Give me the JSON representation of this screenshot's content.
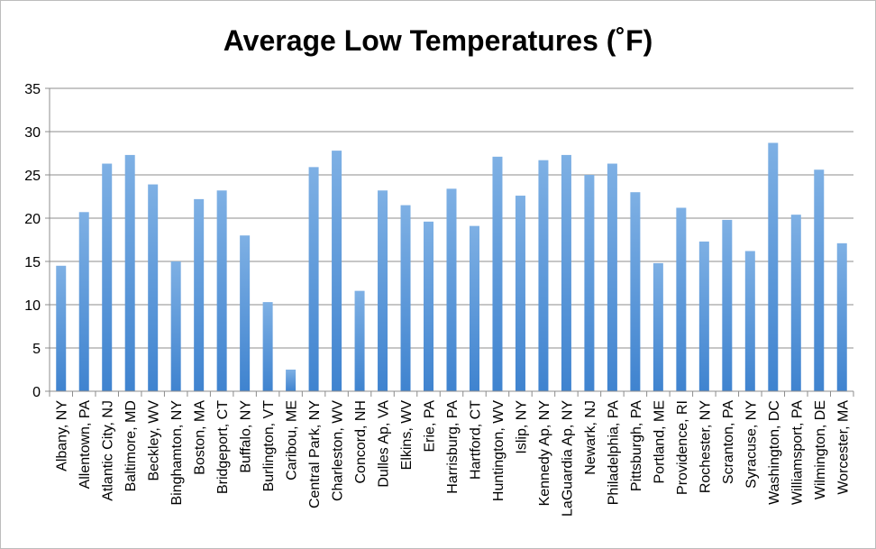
{
  "chart_data": {
    "type": "bar",
    "title": "Average Low Temperatures (˚F)",
    "xlabel": "",
    "ylabel": "",
    "ylim": [
      0,
      35
    ],
    "yticks": [
      0,
      5,
      10,
      15,
      20,
      25,
      30,
      35
    ],
    "grid": true,
    "legend": "none",
    "bar_color": "#5b9bd5",
    "categories": [
      "Albany, NY",
      "Allentown, PA",
      "Atlantic City, NJ",
      "Baltimore, MD",
      "Beckley, WV",
      "Binghamton, NY",
      "Boston, MA",
      "Bridgeport, CT",
      "Buffalo, NY",
      "Burlington, VT",
      "Caribou, ME",
      "Central Park, NY",
      "Charleston, WV",
      "Concord, NH",
      "Dulles Ap, VA",
      "Elkins, WV",
      "Erie, PA",
      "Harrisburg, PA",
      "Hartford, CT",
      "Huntington, WV",
      "Islip, NY",
      "Kennedy Ap, NY",
      "LaGuardia Ap, NY",
      "Newark, NJ",
      "Philadelphia, PA",
      "Pittsburgh, PA",
      "Portland, ME",
      "Providence, RI",
      "Rochester, NY",
      "Scranton, PA",
      "Syracuse, NY",
      "Washington, DC",
      "Williamsport, PA",
      "Wilmington, DE",
      "Worcester, MA"
    ],
    "values": [
      14.5,
      20.7,
      26.3,
      27.3,
      23.9,
      15.0,
      22.2,
      23.2,
      18.0,
      10.3,
      2.5,
      25.9,
      27.8,
      11.6,
      23.2,
      21.5,
      19.6,
      23.4,
      19.1,
      27.1,
      22.6,
      26.7,
      27.3,
      25.0,
      26.3,
      23.0,
      14.8,
      21.2,
      17.3,
      19.8,
      16.2,
      28.7,
      20.4,
      25.6,
      17.1
    ]
  }
}
